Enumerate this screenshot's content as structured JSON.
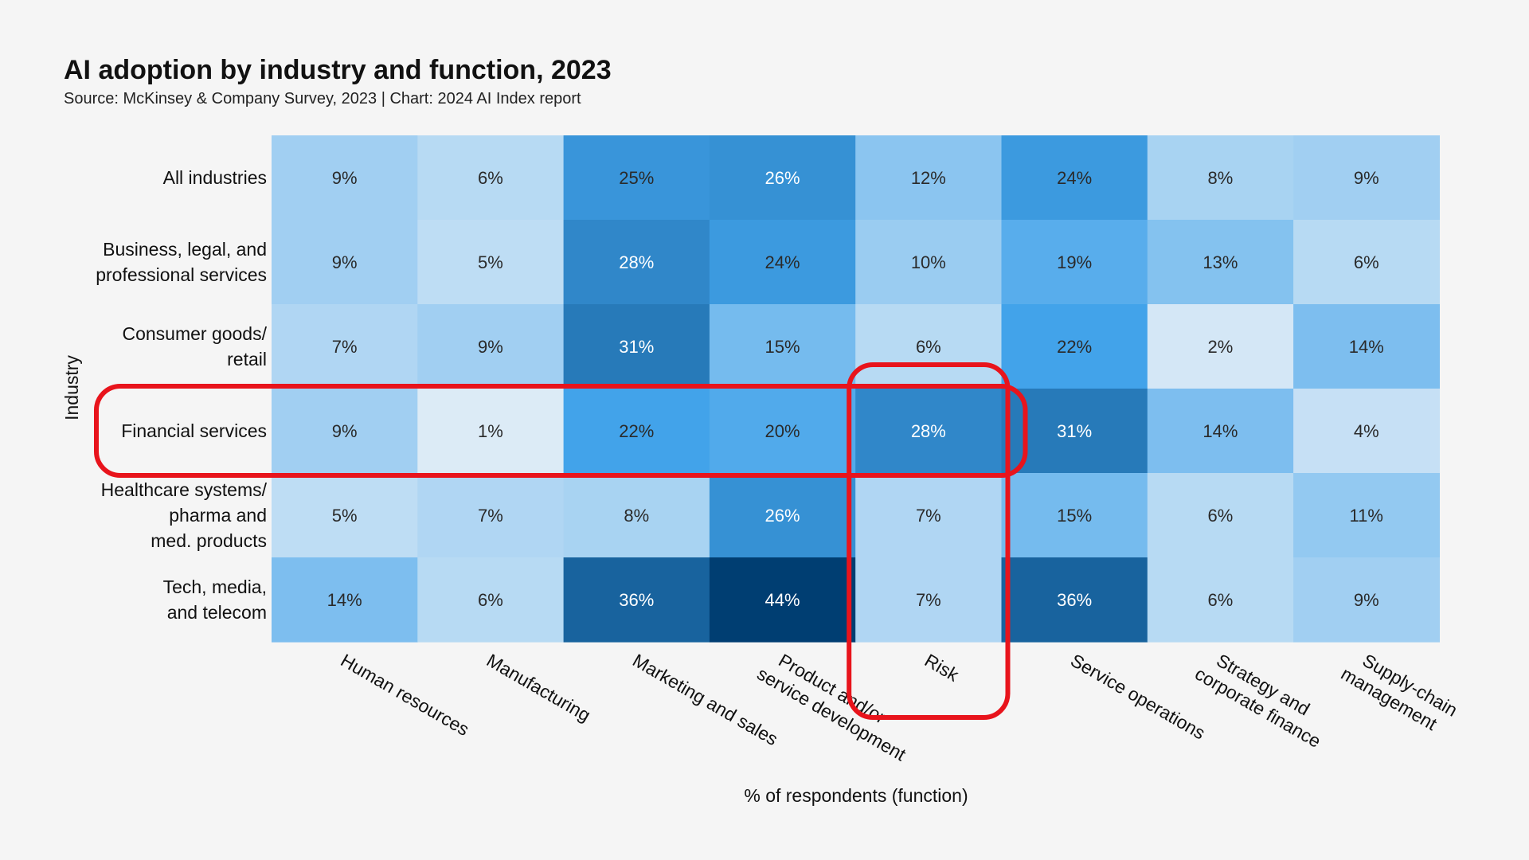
{
  "chart_data": {
    "type": "heatmap",
    "title": "AI adoption by industry and function, 2023",
    "subtitle": "Source: McKinsey & Company Survey, 2023 | Chart: 2024 AI Index report",
    "xlabel": "% of respondents (function)",
    "ylabel": "Industry",
    "rows": [
      [
        "All industries"
      ],
      [
        "Business, legal, and",
        "professional services"
      ],
      [
        "Consumer goods/",
        "retail"
      ],
      [
        "Financial services"
      ],
      [
        "Healthcare systems/",
        "pharma and",
        "med. products"
      ],
      [
        "Tech, media,",
        "and telecom"
      ]
    ],
    "columns": [
      [
        "Human resources"
      ],
      [
        "Manufacturing"
      ],
      [
        "Marketing and sales"
      ],
      [
        "Product and/or",
        "service development"
      ],
      [
        "Risk"
      ],
      [
        "Service operations"
      ],
      [
        "Strategy and",
        "corporate finance"
      ],
      [
        "Supply-chain",
        "management"
      ]
    ],
    "values": [
      [
        9,
        6,
        25,
        26,
        12,
        24,
        8,
        9
      ],
      [
        9,
        5,
        28,
        24,
        10,
        19,
        13,
        6
      ],
      [
        7,
        9,
        31,
        15,
        6,
        22,
        2,
        14
      ],
      [
        9,
        1,
        22,
        20,
        28,
        31,
        14,
        4
      ],
      [
        5,
        7,
        8,
        26,
        7,
        15,
        6,
        11
      ],
      [
        14,
        6,
        36,
        44,
        7,
        36,
        6,
        9
      ]
    ],
    "value_suffix": "%",
    "highlights": {
      "row": "Financial services",
      "column": "Risk",
      "color": "#e8141c"
    },
    "colors": {
      "low": "#e3eef7",
      "mid": "#42a3ea",
      "high": "#003e72",
      "text_dark": "#2a2a2a",
      "text_light": "#ffffff"
    }
  }
}
